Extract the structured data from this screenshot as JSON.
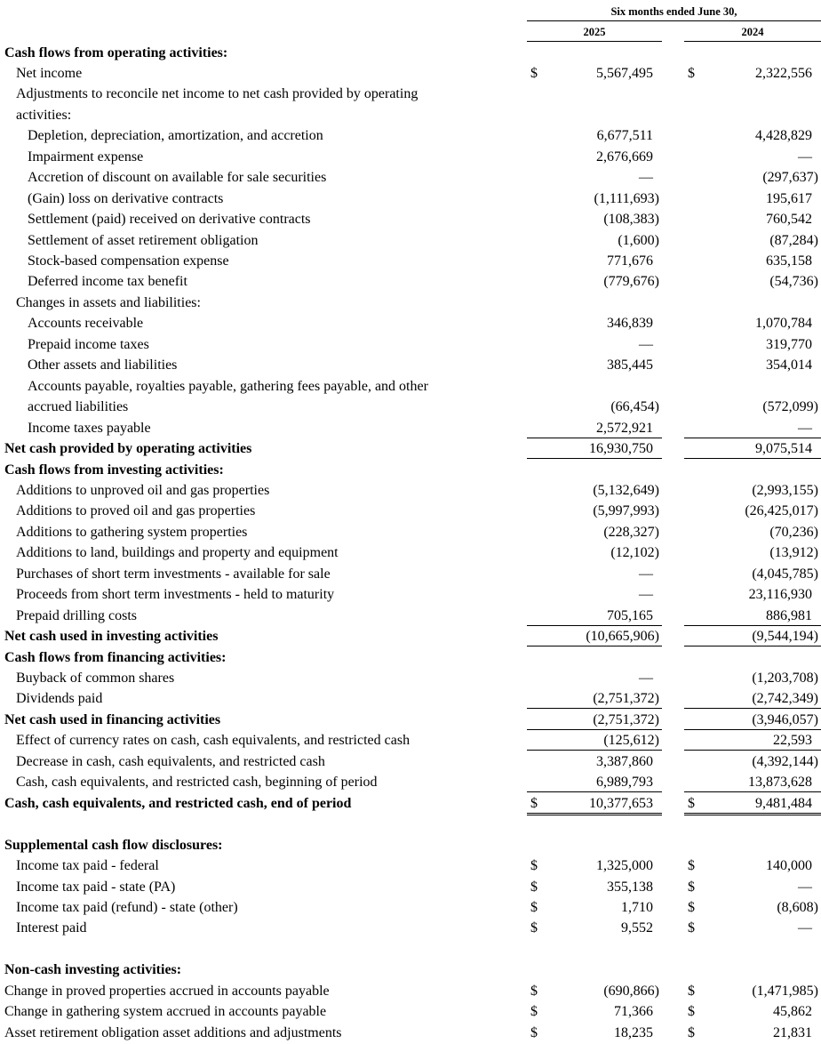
{
  "header": {
    "period": "Six months ended June 30,",
    "col1": "2025",
    "col2": "2024"
  },
  "rows": [
    {
      "label": "Cash flows from operating activities:",
      "indent": 0,
      "bold": true
    },
    {
      "label": "Net income",
      "indent": 1,
      "d1": "$",
      "v1": "5,567,495",
      "d2": "$",
      "v2": "2,322,556"
    },
    {
      "label": "Adjustments to reconcile net income to net cash provided by operating",
      "indent": 1
    },
    {
      "label": "activities:",
      "indent": 1
    },
    {
      "label": "Depletion, depreciation, amortization, and accretion",
      "indent": 2,
      "v1": "6,677,511",
      "v2": "4,428,829"
    },
    {
      "label": "Impairment expense",
      "indent": 2,
      "v1": "2,676,669",
      "v2": "—"
    },
    {
      "label": "Accretion of discount on available for sale securities",
      "indent": 2,
      "v1": "—",
      "v2": "(297,637)"
    },
    {
      "label": "(Gain) loss on derivative contracts",
      "indent": 2,
      "v1": "(1,111,693)",
      "v2": "195,617"
    },
    {
      "label": "Settlement (paid) received on derivative contracts",
      "indent": 2,
      "v1": "(108,383)",
      "v2": "760,542"
    },
    {
      "label": "Settlement of asset retirement obligation",
      "indent": 2,
      "v1": "(1,600)",
      "v2": "(87,284)"
    },
    {
      "label": "Stock-based compensation expense",
      "indent": 2,
      "v1": "771,676",
      "v2": "635,158"
    },
    {
      "label": "Deferred income tax benefit",
      "indent": 2,
      "v1": "(779,676)",
      "v2": "(54,736)"
    },
    {
      "label": "Changes in assets and liabilities:",
      "indent": 1
    },
    {
      "label": "Accounts receivable",
      "indent": 2,
      "v1": "346,839",
      "v2": "1,070,784"
    },
    {
      "label": "Prepaid income taxes",
      "indent": 2,
      "v1": "—",
      "v2": "319,770"
    },
    {
      "label": "Other assets and liabilities",
      "indent": 2,
      "v1": "385,445",
      "v2": "354,014"
    },
    {
      "label": "Accounts payable, royalties payable, gathering fees payable, and other",
      "indent": 2
    },
    {
      "label": "accrued liabilities",
      "indent": 2,
      "v1": "(66,454)",
      "v2": "(572,099)"
    },
    {
      "label": "Income taxes payable",
      "indent": 2,
      "v1": "2,572,921",
      "v2": "—",
      "rule": "single"
    },
    {
      "label": "Net cash provided by operating activities",
      "indent": 0,
      "bold": true,
      "v1": "16,930,750",
      "v2": "9,075,514",
      "rule": "single"
    },
    {
      "label": "Cash flows from investing activities:",
      "indent": 0,
      "bold": true
    },
    {
      "label": "Additions to unproved oil and gas properties",
      "indent": 1,
      "v1": "(5,132,649)",
      "v2": "(2,993,155)"
    },
    {
      "label": "Additions to proved oil and gas properties",
      "indent": 1,
      "v1": "(5,997,993)",
      "v2": "(26,425,017)"
    },
    {
      "label": "Additions to gathering system properties",
      "indent": 1,
      "v1": "(228,327)",
      "v2": "(70,236)"
    },
    {
      "label": "Additions to land, buildings and property and equipment",
      "indent": 1,
      "v1": "(12,102)",
      "v2": "(13,912)"
    },
    {
      "label": "Purchases of short term investments - available for sale",
      "indent": 1,
      "v1": "—",
      "v2": "(4,045,785)"
    },
    {
      "label": "Proceeds from short term investments - held to maturity",
      "indent": 1,
      "v1": "—",
      "v2": "23,116,930"
    },
    {
      "label": "Prepaid drilling costs",
      "indent": 1,
      "v1": "705,165",
      "v2": "886,981",
      "rule": "single"
    },
    {
      "label": "Net cash used in investing activities",
      "indent": 0,
      "bold": true,
      "v1": "(10,665,906)",
      "v2": "(9,544,194)",
      "rule": "single"
    },
    {
      "label": "Cash flows from financing activities:",
      "indent": 0,
      "bold": true
    },
    {
      "label": "Buyback of common shares",
      "indent": 1,
      "v1": "—",
      "v2": "(1,203,708)"
    },
    {
      "label": "Dividends paid",
      "indent": 1,
      "v1": "(2,751,372)",
      "v2": "(2,742,349)",
      "rule": "single"
    },
    {
      "label": "Net cash used in financing activities",
      "indent": 0,
      "bold": true,
      "v1": "(2,751,372)",
      "v2": "(3,946,057)",
      "rule": "single"
    },
    {
      "label": "Effect of currency rates on cash, cash equivalents, and restricted cash",
      "indent": 1,
      "v1": "(125,612)",
      "v2": "22,593",
      "rule": "single"
    },
    {
      "label": "Decrease in cash, cash equivalents, and restricted cash",
      "indent": 1,
      "v1": "3,387,860",
      "v2": "(4,392,144)"
    },
    {
      "label": "Cash, cash equivalents, and restricted cash, beginning of period",
      "indent": 1,
      "v1": "6,989,793",
      "v2": "13,873,628",
      "rule": "single"
    },
    {
      "label": "Cash, cash equivalents, and restricted cash, end of period",
      "indent": 0,
      "bold": true,
      "d1": "$",
      "v1": "10,377,653",
      "d2": "$",
      "v2": "9,481,484",
      "rule": "double"
    },
    {
      "label": "",
      "indent": 0
    },
    {
      "label": "Supplemental cash flow disclosures:",
      "indent": 0,
      "bold": true
    },
    {
      "label": "Income tax paid - federal",
      "indent": 1,
      "d1": "$",
      "v1": "1,325,000",
      "d2": "$",
      "v2": "140,000"
    },
    {
      "label": "Income tax paid - state (PA)",
      "indent": 1,
      "d1": "$",
      "v1": "355,138",
      "d2": "$",
      "v2": "—"
    },
    {
      "label": "Income tax paid (refund) - state (other)",
      "indent": 1,
      "d1": "$",
      "v1": "1,710",
      "d2": "$",
      "v2": "(8,608)"
    },
    {
      "label": "Interest paid",
      "indent": 1,
      "d1": "$",
      "v1": "9,552",
      "d2": "$",
      "v2": "—"
    },
    {
      "label": "",
      "indent": 0
    },
    {
      "label": "Non-cash investing activities:",
      "indent": 0,
      "bold": true
    },
    {
      "label": "Change in proved properties accrued in accounts payable",
      "indent": 0,
      "d1": "$",
      "v1": "(690,866)",
      "d2": "$",
      "v2": "(1,471,985)"
    },
    {
      "label": "Change in gathering system accrued in accounts payable",
      "indent": 0,
      "d1": "$",
      "v1": "71,366",
      "d2": "$",
      "v2": "45,862"
    },
    {
      "label": "Asset retirement obligation asset additions and adjustments",
      "indent": 0,
      "d1": "$",
      "v1": "18,235",
      "d2": "$",
      "v2": "21,831"
    }
  ]
}
